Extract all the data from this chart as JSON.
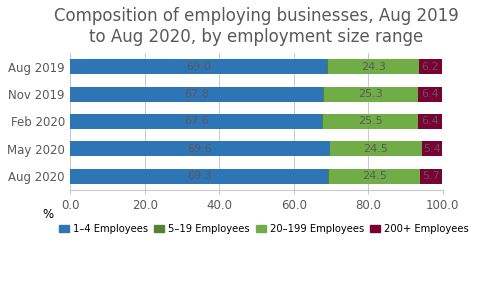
{
  "title": "Composition of employing businesses, Aug 2019\nto Aug 2020, by employment size range",
  "categories": [
    "Aug 2019",
    "Nov 2019",
    "Feb 2020",
    "May 2020",
    "Aug 2020"
  ],
  "series": {
    "1–4 Employees": [
      69.0,
      67.8,
      67.6,
      69.6,
      69.3
    ],
    "5–19 Employees": [
      0.2,
      0.2,
      0.2,
      0.2,
      0.2
    ],
    "20–199 Employees": [
      24.3,
      25.3,
      25.5,
      24.5,
      24.5
    ],
    "200+ Employees": [
      6.2,
      6.4,
      6.4,
      5.4,
      5.7
    ]
  },
  "colors": {
    "1–4 Employees": "#2E75B6",
    "5–19 Employees": "#548235",
    "20–199 Employees": "#70AD47",
    "200+ Employees": "#7B0033"
  },
  "bar_labels": {
    "1–4 Employees": [
      69.0,
      67.8,
      67.6,
      69.6,
      69.3
    ],
    "5–19 Employees": [
      null,
      null,
      null,
      null,
      null
    ],
    "20–199 Employees": [
      24.3,
      25.3,
      25.5,
      24.5,
      24.5
    ],
    "200+ Employees": [
      6.2,
      6.4,
      6.4,
      5.4,
      5.7
    ]
  },
  "xlim": [
    0,
    100
  ],
  "xticks": [
    0.0,
    20.0,
    40.0,
    60.0,
    80.0,
    100.0
  ],
  "xlabel": "%",
  "legend_order": [
    "1–4 Employees",
    "5–19 Employees",
    "20–199 Employees",
    "200+ Employees"
  ],
  "legend_colors": [
    "#2E75B6",
    "#548235",
    "#70AD47",
    "#7B0033"
  ],
  "background_color": "#FFFFFF",
  "title_fontsize": 12,
  "label_fontsize": 8.0,
  "tick_fontsize": 8.5,
  "bar_height": 0.55,
  "title_color": "#595959",
  "label_color_dark": "#595959",
  "label_color_light": "#595959"
}
